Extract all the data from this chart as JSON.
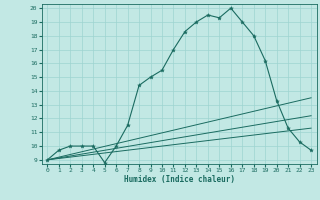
{
  "title": "",
  "xlabel": "Humidex (Indice chaleur)",
  "background_color": "#c2e8e4",
  "line_color": "#1a6b60",
  "grid_color": "#9ed4d0",
  "xlim": [
    -0.5,
    23.5
  ],
  "ylim": [
    8.7,
    20.3
  ],
  "xticks": [
    0,
    1,
    2,
    3,
    4,
    5,
    6,
    7,
    8,
    9,
    10,
    11,
    12,
    13,
    14,
    15,
    16,
    17,
    18,
    19,
    20,
    21,
    22,
    23
  ],
  "yticks": [
    9,
    10,
    11,
    12,
    13,
    14,
    15,
    16,
    17,
    18,
    19,
    20
  ],
  "main_x": [
    0,
    1,
    2,
    3,
    4,
    5,
    6,
    7,
    8,
    9,
    10,
    11,
    12,
    13,
    14,
    15,
    16,
    17,
    18,
    19,
    20,
    21,
    22,
    23
  ],
  "main_y": [
    9.0,
    9.7,
    10.0,
    10.0,
    10.0,
    8.8,
    10.0,
    11.5,
    14.4,
    15.0,
    15.5,
    17.0,
    18.3,
    19.0,
    19.5,
    19.3,
    20.0,
    19.0,
    18.0,
    16.2,
    13.3,
    11.3,
    10.3,
    9.7
  ],
  "line1_x": [
    0,
    23
  ],
  "line1_y": [
    9.0,
    13.5
  ],
  "line2_x": [
    0,
    23
  ],
  "line2_y": [
    9.0,
    12.2
  ],
  "line3_x": [
    0,
    23
  ],
  "line3_y": [
    9.0,
    11.3
  ],
  "star_indices": [
    0,
    1,
    2,
    3,
    4,
    5,
    6,
    7,
    8,
    9,
    10,
    11,
    12,
    13,
    14,
    15,
    16,
    17,
    18,
    19,
    20,
    21,
    22,
    23
  ]
}
